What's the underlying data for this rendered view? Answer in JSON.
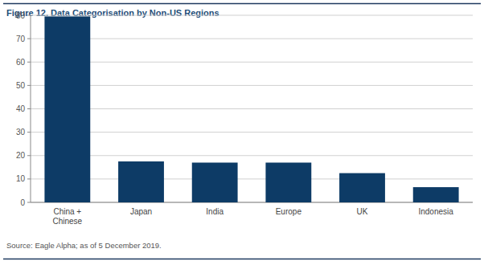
{
  "chart_data": {
    "type": "bar",
    "title": "Figure 12. Data Categorisation by Non-US Regions",
    "source": "Source: Eagle Alpha; as of 5 December 2019.",
    "categories": [
      "China + Chinese",
      "Japan",
      "India",
      "Europe",
      "UK",
      "Indonesia"
    ],
    "values": [
      79.5,
      17.5,
      17,
      17,
      12.5,
      6.5
    ],
    "color": "#0d3b66",
    "ylim": [
      0,
      80
    ],
    "yticks": [
      0,
      10,
      20,
      30,
      40,
      50,
      60,
      70,
      80
    ],
    "grid": true
  }
}
